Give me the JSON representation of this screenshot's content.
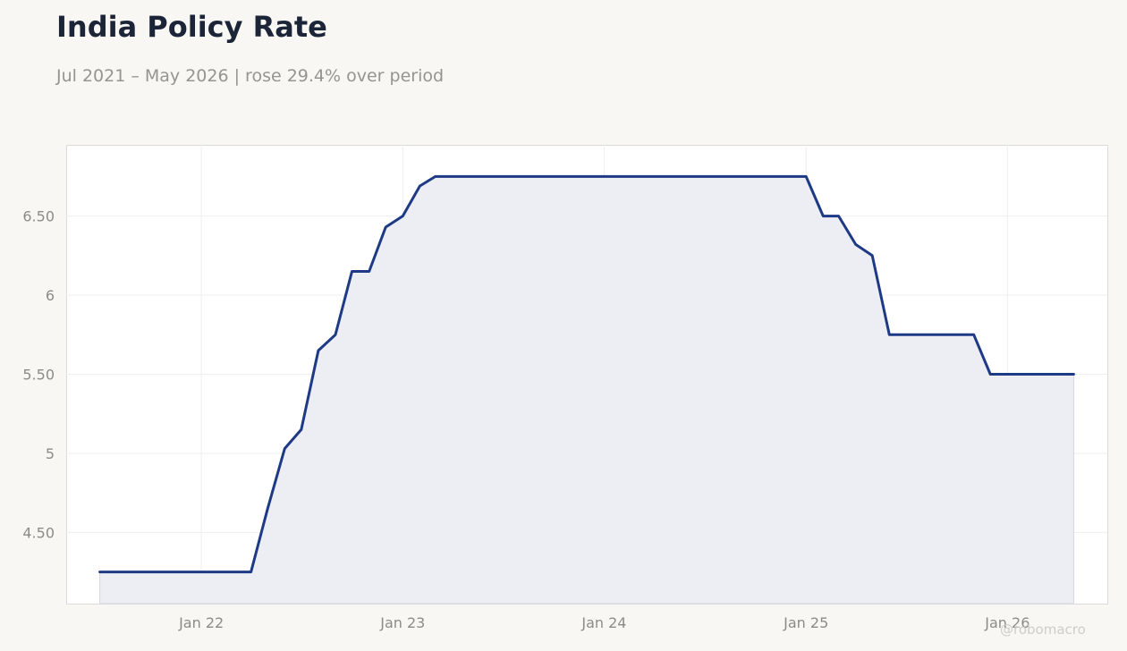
{
  "header": {
    "title": "India Policy Rate",
    "subtitle": "Jul 2021 – May 2026 | rose 29.4% over period"
  },
  "watermark": "@robomacro",
  "colors": {
    "background": "#f9f7f4",
    "plot_background": "#ffffff",
    "line": "#1f3a85",
    "area_fill": "#eceef4",
    "grid": "#eeeeee",
    "title": "#1b2537",
    "muted_text": "#969490"
  },
  "chart_data": {
    "type": "area",
    "title": "India Policy Rate",
    "subtitle": "Jul 2021 – May 2026 | rose 29.4% over period",
    "xlabel": "",
    "ylabel": "",
    "xlim": [
      "2021-05-01",
      "2026-07-01"
    ],
    "ylim": [
      4.05,
      6.95
    ],
    "grid": true,
    "x_ticks": [
      {
        "date": "2022-01-01",
        "label": "Jan 22"
      },
      {
        "date": "2023-01-01",
        "label": "Jan 23"
      },
      {
        "date": "2024-01-01",
        "label": "Jan 24"
      },
      {
        "date": "2025-01-01",
        "label": "Jan 25"
      },
      {
        "date": "2026-01-01",
        "label": "Jan 26"
      }
    ],
    "y_ticks": [
      {
        "value": 4.5,
        "label": "4.50"
      },
      {
        "value": 5.0,
        "label": "5"
      },
      {
        "value": 5.5,
        "label": "5.50"
      },
      {
        "value": 6.0,
        "label": "6"
      },
      {
        "value": 6.5,
        "label": "6.50"
      }
    ],
    "series": [
      {
        "points": [
          {
            "x": "2021-07-01",
            "y": 4.25
          },
          {
            "x": "2022-04-01",
            "y": 4.25
          },
          {
            "x": "2022-05-01",
            "y": 4.65
          },
          {
            "x": "2022-06-01",
            "y": 5.03
          },
          {
            "x": "2022-07-01",
            "y": 5.15
          },
          {
            "x": "2022-08-01",
            "y": 5.65
          },
          {
            "x": "2022-09-01",
            "y": 5.75
          },
          {
            "x": "2022-10-01",
            "y": 6.15
          },
          {
            "x": "2022-11-01",
            "y": 6.15
          },
          {
            "x": "2022-12-01",
            "y": 6.43
          },
          {
            "x": "2023-01-01",
            "y": 6.5
          },
          {
            "x": "2023-02-01",
            "y": 6.69
          },
          {
            "x": "2023-03-01",
            "y": 6.75
          },
          {
            "x": "2025-01-01",
            "y": 6.75
          },
          {
            "x": "2025-02-01",
            "y": 6.5
          },
          {
            "x": "2025-03-01",
            "y": 6.5
          },
          {
            "x": "2025-04-01",
            "y": 6.32
          },
          {
            "x": "2025-05-01",
            "y": 6.25
          },
          {
            "x": "2025-06-01",
            "y": 5.75
          },
          {
            "x": "2025-11-01",
            "y": 5.75
          },
          {
            "x": "2025-12-01",
            "y": 5.5
          },
          {
            "x": "2026-05-01",
            "y": 5.5
          }
        ]
      }
    ]
  }
}
